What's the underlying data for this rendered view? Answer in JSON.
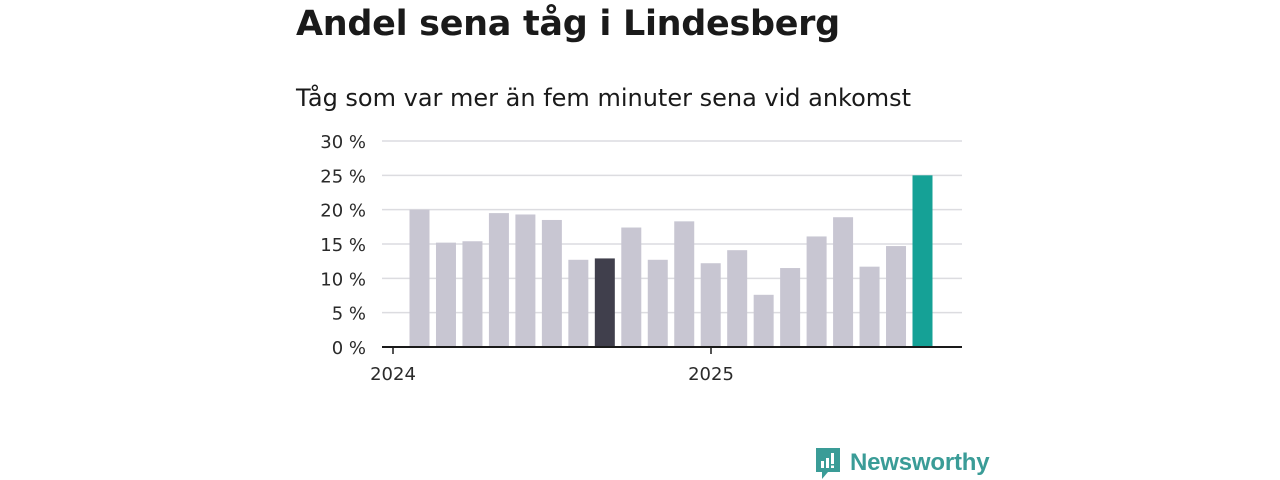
{
  "title": "Andel sena tåg i Lindesberg",
  "subtitle": "Tåg som var mer än fem minuter sena vid ankomst",
  "brand": {
    "name": "Newsworthy",
    "icon": "newsworthy-logo-icon"
  },
  "colors": {
    "default": "#c8c6d2",
    "highlight_dark": "#403f4c",
    "highlight_latest": "#15a196"
  },
  "chart_data": {
    "type": "bar",
    "title": "",
    "xlabel": "",
    "ylabel": "",
    "ylim": [
      0,
      30
    ],
    "yticks": [
      0,
      5,
      10,
      15,
      20,
      25,
      30
    ],
    "ytick_labels": [
      "0 %",
      "5 %",
      "10 %",
      "15 %",
      "20 %",
      "25 %",
      "30 %"
    ],
    "xtick_labels": [
      "2024",
      "2025"
    ],
    "grid": true,
    "categories": [
      "2024-01",
      "2024-02",
      "2024-03",
      "2024-04",
      "2024-05",
      "2024-06",
      "2024-07",
      "2024-08",
      "2024-09",
      "2024-10",
      "2024-11",
      "2024-12",
      "2025-01",
      "2025-02",
      "2025-03",
      "2025-04",
      "2025-05",
      "2025-06",
      "2025-07",
      "2025-08"
    ],
    "values": [
      20.0,
      15.2,
      15.4,
      19.5,
      19.3,
      18.5,
      12.7,
      12.9,
      17.4,
      12.7,
      18.3,
      12.2,
      14.1,
      7.6,
      11.5,
      16.1,
      18.9,
      11.7,
      14.7,
      25.0
    ],
    "highlight": {
      "2024-08": "highlight_dark",
      "2025-08": "highlight_latest"
    }
  }
}
